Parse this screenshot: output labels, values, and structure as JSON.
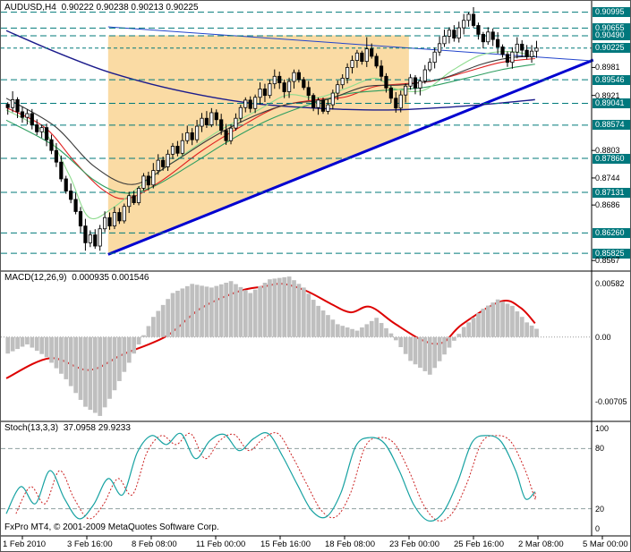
{
  "app": {
    "title": "AUDUSD,H4",
    "ohlc_text": "0.90222 0.90238 0.90213 0.90225",
    "footer": "FxPro MT4, © 2001-2009 MetaQuotes Software Corp."
  },
  "colors": {
    "background": "#FFFFFF",
    "level_line": "#007a7a",
    "level_box_bg": "#00787d",
    "level_box_text": "#FFFFFF",
    "candle_bull_fill": "#FFFFFF",
    "candle_bear_fill": "#000000",
    "candle_outline": "#000000",
    "support_trendline": "#0000d0",
    "resistance_trendline": "#2244cc",
    "triangle_fill": "rgba(247,200,115,0.65)",
    "macd_hist": "#bfbfbf",
    "macd_signal": "#dd0000",
    "stoch_main": "#17a2a2",
    "stoch_signal": "#cc2222",
    "ma_navy": "#1c1c8c",
    "ma_red": "#e02020",
    "ma_green": "#2e9e60",
    "ma_lime": "#8fdc8f",
    "ma_dark": "#3a3a3a",
    "separator": "#000000",
    "grid_dotted": "#999999",
    "stoch_level_line": "#8fa0a0"
  },
  "time_axis": {
    "labels": [
      "1 Feb 2010",
      "3 Feb 16:00",
      "8 Feb 08:00",
      "11 Feb 00:00",
      "15 Feb 16:00",
      "18 Feb 08:00",
      "23 Feb 00:00",
      "25 Feb 16:00",
      "2 Mar 08:00",
      "5 Mar 00:00"
    ]
  },
  "chart_data": [
    {
      "type": "candlestick",
      "symbol": "AUDUSD",
      "timeframe": "H4",
      "title": "AUDUSD,H4",
      "ohlc": {
        "open": 0.90222,
        "high": 0.90238,
        "low": 0.90213,
        "close": 0.90225
      },
      "y_range": [
        0.8552,
        0.9118
      ],
      "levels_boxed": [
        "0.90995",
        "0.90655",
        "0.90490",
        "0.89546",
        "0.89041",
        "0.88574",
        "0.87860",
        "0.87131",
        "0.86260",
        "0.85825"
      ],
      "current_price_label": "0.90225",
      "current_price": 0.90225,
      "axis_ticks_plain": [
        "0.8981",
        "0.8921",
        "0.8803",
        "0.8744",
        "0.8686",
        "0.8567"
      ],
      "wick": 0.0013,
      "closes": [
        0.8895,
        0.8912,
        0.8886,
        0.8874,
        0.8882,
        0.8858,
        0.8843,
        0.8852,
        0.8826,
        0.8803,
        0.8778,
        0.8742,
        0.8716,
        0.8698,
        0.8672,
        0.8641,
        0.8605,
        0.8622,
        0.8598,
        0.8635,
        0.8659,
        0.8641,
        0.867,
        0.8652,
        0.8683,
        0.8706,
        0.8691,
        0.8722,
        0.8748,
        0.8729,
        0.876,
        0.8782,
        0.8768,
        0.8795,
        0.8812,
        0.8797,
        0.8824,
        0.8841,
        0.8826,
        0.8855,
        0.8872,
        0.8858,
        0.8884,
        0.8869,
        0.8846,
        0.8824,
        0.8851,
        0.8872,
        0.8895,
        0.8911,
        0.8893,
        0.8917,
        0.8935,
        0.8921,
        0.8946,
        0.8962,
        0.8948,
        0.8929,
        0.8951,
        0.897,
        0.8955,
        0.8938,
        0.8921,
        0.8895,
        0.8911,
        0.8887,
        0.8901,
        0.8926,
        0.8944,
        0.8958,
        0.8981,
        0.8996,
        0.9012,
        0.8994,
        0.9021,
        0.9005,
        0.8984,
        0.8962,
        0.8937,
        0.8915,
        0.8894,
        0.8922,
        0.8941,
        0.8959,
        0.8937,
        0.8952,
        0.8976,
        0.8992,
        0.9014,
        0.9032,
        0.9048,
        0.9061,
        0.9044,
        0.9066,
        0.9082,
        0.9095,
        0.9071,
        0.9052,
        0.9036,
        0.9057,
        0.9041,
        0.9025,
        0.9009,
        0.8992,
        0.9014,
        0.9031,
        0.9018,
        0.9004,
        0.9016,
        0.90225
      ],
      "spikes": [
        {
          "i": 1,
          "high": 0.893
        },
        {
          "i": 16,
          "low": 0.8588
        },
        {
          "i": 18,
          "low": 0.8592
        },
        {
          "i": 45,
          "low": 0.8815
        },
        {
          "i": 74,
          "high": 0.9046
        },
        {
          "i": 80,
          "low": 0.8884
        },
        {
          "i": 95,
          "high": 0.90995
        }
      ],
      "trend_lines": [
        {
          "name": "ascending-support",
          "from": [
            21,
            0.858
          ],
          "to": [
            121,
            0.8997
          ],
          "width": 3
        },
        {
          "name": "descending-resistance",
          "from": [
            21,
            0.9068
          ],
          "to": [
            121,
            0.8995
          ],
          "width": 1
        }
      ],
      "triangle": [
        [
          21,
          0.905
        ],
        [
          83,
          0.905
        ],
        [
          83,
          0.8839
        ],
        [
          21,
          0.858
        ]
      ],
      "moving_averages": [
        {
          "name": "ma-slow-navy",
          "color_key": "ma_navy",
          "anchors": [
            [
              0,
              0.906
            ],
            [
              10,
              0.9015
            ],
            [
              20,
              0.8975
            ],
            [
              30,
              0.8945
            ],
            [
              40,
              0.8922
            ],
            [
              50,
              0.8905
            ],
            [
              60,
              0.8896
            ],
            [
              70,
              0.8891
            ],
            [
              80,
              0.889
            ],
            [
              90,
              0.8895
            ],
            [
              100,
              0.8903
            ],
            [
              109,
              0.8912
            ]
          ]
        },
        {
          "name": "ma-red",
          "color_key": "ma_red",
          "anchors": [
            [
              0,
              0.8895
            ],
            [
              8,
              0.8852
            ],
            [
              14,
              0.878
            ],
            [
              20,
              0.8718
            ],
            [
              25,
              0.87
            ],
            [
              32,
              0.8738
            ],
            [
              40,
              0.88
            ],
            [
              48,
              0.8852
            ],
            [
              56,
              0.8896
            ],
            [
              64,
              0.8912
            ],
            [
              70,
              0.8918
            ],
            [
              76,
              0.894
            ],
            [
              82,
              0.8946
            ],
            [
              88,
              0.8952
            ],
            [
              95,
              0.8972
            ],
            [
              102,
              0.8992
            ],
            [
              109,
              0.9
            ]
          ]
        },
        {
          "name": "ma-green",
          "color_key": "ma_green",
          "anchors": [
            [
              0,
              0.8868
            ],
            [
              10,
              0.8812
            ],
            [
              18,
              0.874
            ],
            [
              24,
              0.8712
            ],
            [
              30,
              0.8724
            ],
            [
              38,
              0.8772
            ],
            [
              46,
              0.8824
            ],
            [
              54,
              0.8868
            ],
            [
              62,
              0.89
            ],
            [
              70,
              0.8924
            ],
            [
              78,
              0.8932
            ],
            [
              86,
              0.8938
            ],
            [
              94,
              0.8956
            ],
            [
              102,
              0.8976
            ],
            [
              109,
              0.8988
            ]
          ]
        },
        {
          "name": "ma-lime",
          "color_key": "ma_lime",
          "anchors": [
            [
              0,
              0.889
            ],
            [
              8,
              0.884
            ],
            [
              13,
              0.875
            ],
            [
              17,
              0.866
            ],
            [
              22,
              0.868
            ],
            [
              28,
              0.873
            ],
            [
              36,
              0.879
            ],
            [
              44,
              0.8846
            ],
            [
              52,
              0.889
            ],
            [
              58,
              0.8922
            ],
            [
              64,
              0.8916
            ],
            [
              70,
              0.8936
            ],
            [
              76,
              0.8958
            ],
            [
              80,
              0.8936
            ],
            [
              86,
              0.8932
            ],
            [
              92,
              0.8975
            ],
            [
              98,
              0.9008
            ],
            [
              104,
              0.9015
            ],
            [
              109,
              0.9005
            ]
          ]
        },
        {
          "name": "ma-dark",
          "color_key": "ma_dark",
          "anchors": [
            [
              0,
              0.8915
            ],
            [
              10,
              0.8855
            ],
            [
              18,
              0.877
            ],
            [
              26,
              0.873
            ],
            [
              34,
              0.8775
            ],
            [
              42,
              0.8828
            ],
            [
              50,
              0.8872
            ],
            [
              58,
              0.8902
            ],
            [
              66,
              0.8912
            ],
            [
              74,
              0.894
            ],
            [
              82,
              0.8944
            ],
            [
              90,
              0.8958
            ],
            [
              98,
              0.8988
            ],
            [
              104,
              0.9002
            ],
            [
              109,
              0.9005
            ]
          ]
        }
      ]
    },
    {
      "type": "macd",
      "label": "MACD(12,26,9)",
      "values_text": "0.000935 0.001546",
      "macd_value": 0.000935,
      "signal_value": 0.001546,
      "y_range": [
        -0.009,
        0.007
      ],
      "scale_labels": [
        "0.00582",
        "0.00",
        "-0.00705"
      ],
      "histogram_anchors": [
        [
          0,
          -0.0018
        ],
        [
          4,
          -0.0008
        ],
        [
          8,
          -0.0022
        ],
        [
          12,
          -0.0046
        ],
        [
          16,
          -0.0076
        ],
        [
          19,
          -0.0086
        ],
        [
          22,
          -0.0058
        ],
        [
          26,
          -0.0018
        ],
        [
          30,
          0.0022
        ],
        [
          34,
          0.0048
        ],
        [
          38,
          0.0058
        ],
        [
          42,
          0.0054
        ],
        [
          46,
          0.0061
        ],
        [
          50,
          0.0048
        ],
        [
          54,
          0.0063
        ],
        [
          58,
          0.0066
        ],
        [
          61,
          0.0054
        ],
        [
          64,
          0.0034
        ],
        [
          68,
          0.0014
        ],
        [
          72,
          0.0007
        ],
        [
          76,
          0.0021
        ],
        [
          79,
          0.0004
        ],
        [
          83,
          -0.0026
        ],
        [
          87,
          -0.0041
        ],
        [
          90,
          -0.0019
        ],
        [
          94,
          0.0011
        ],
        [
          98,
          0.0031
        ],
        [
          101,
          0.0041
        ],
        [
          104,
          0.0034
        ],
        [
          107,
          0.0016
        ],
        [
          109,
          0.0009
        ]
      ],
      "signal_anchors": [
        [
          0,
          -0.0045
        ],
        [
          9,
          -0.0023
        ],
        [
          17,
          -0.0036
        ],
        [
          24,
          -0.0019
        ],
        [
          33,
          0.0001
        ],
        [
          40,
          0.0031
        ],
        [
          48,
          0.005
        ],
        [
          53,
          0.0055
        ],
        [
          57,
          0.0058
        ],
        [
          62,
          0.005
        ],
        [
          67,
          0.0036
        ],
        [
          71,
          0.0027
        ],
        [
          75,
          0.0033
        ],
        [
          80,
          0.0015
        ],
        [
          86,
          -0.0004
        ],
        [
          90,
          -0.0006
        ],
        [
          94,
          0.0014
        ],
        [
          102,
          0.0039
        ],
        [
          106,
          0.0032
        ],
        [
          109,
          0.0015
        ]
      ]
    },
    {
      "type": "stochastic",
      "label": "Stoch(13,3,3)",
      "values_text": "37.0958 29.9233",
      "main_value": 37.0958,
      "signal_value": 29.9233,
      "y_range": [
        0,
        100
      ],
      "levels": [
        80,
        20
      ],
      "scale_labels": [
        "100",
        "80",
        "20",
        "0"
      ],
      "signal_shift": 2,
      "main_anchors": [
        [
          0,
          15
        ],
        [
          3,
          42
        ],
        [
          6,
          25
        ],
        [
          9,
          58
        ],
        [
          12,
          30
        ],
        [
          15,
          10
        ],
        [
          18,
          24
        ],
        [
          21,
          50
        ],
        [
          24,
          34
        ],
        [
          27,
          76
        ],
        [
          30,
          93
        ],
        [
          33,
          84
        ],
        [
          36,
          95
        ],
        [
          39,
          70
        ],
        [
          42,
          88
        ],
        [
          45,
          94
        ],
        [
          48,
          78
        ],
        [
          51,
          90
        ],
        [
          54,
          95
        ],
        [
          57,
          72
        ],
        [
          60,
          44
        ],
        [
          63,
          18
        ],
        [
          66,
          12
        ],
        [
          69,
          36
        ],
        [
          72,
          82
        ],
        [
          75,
          91
        ],
        [
          78,
          85
        ],
        [
          81,
          58
        ],
        [
          84,
          24
        ],
        [
          87,
          8
        ],
        [
          90,
          16
        ],
        [
          93,
          46
        ],
        [
          96,
          86
        ],
        [
          99,
          93
        ],
        [
          102,
          87
        ],
        [
          105,
          58
        ],
        [
          107,
          30
        ],
        [
          109,
          37
        ]
      ]
    }
  ]
}
